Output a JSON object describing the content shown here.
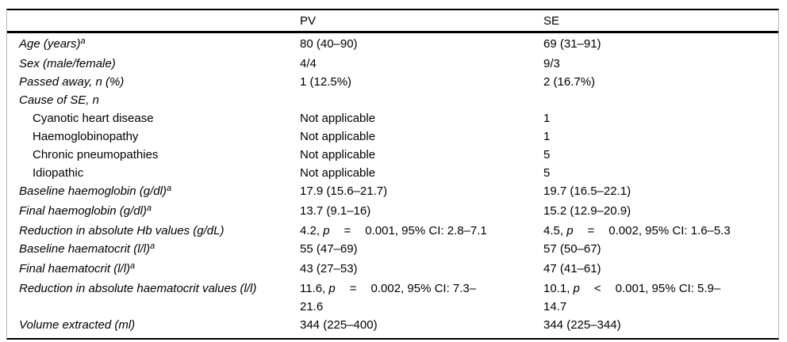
{
  "table": {
    "header": {
      "label": "",
      "pv": "PV",
      "se": "SE"
    },
    "rows": [
      {
        "label": "Age (years)",
        "sup": "a",
        "italic": true,
        "indent": false,
        "pv": "80 (40–90)",
        "se": "69 (31–91)"
      },
      {
        "label": "Sex (male/female)",
        "italic": true,
        "indent": false,
        "pv": "4/4",
        "se": "9/3"
      },
      {
        "label": "Passed away, n (%)",
        "italic": true,
        "indent": false,
        "pv": "1 (12.5%)",
        "se": "2 (16.7%)"
      },
      {
        "label": "Cause of SE, n",
        "italic": true,
        "indent": false,
        "pv": "",
        "se": ""
      },
      {
        "label": "Cyanotic heart disease",
        "italic": false,
        "indent": true,
        "pv": "Not applicable",
        "se": "1"
      },
      {
        "label": "Haemoglobinopathy",
        "italic": false,
        "indent": true,
        "pv": "Not applicable",
        "se": "1"
      },
      {
        "label": "Chronic pneumopathies",
        "italic": false,
        "indent": true,
        "pv": "Not applicable",
        "se": "5"
      },
      {
        "label": "Idiopathic",
        "italic": false,
        "indent": true,
        "pv": "Not applicable",
        "se": "5"
      },
      {
        "label": "Baseline haemoglobin (g/dl)",
        "sup": "a",
        "italic": true,
        "indent": false,
        "pv": "17.9 (15.6–21.7)",
        "se": "19.7 (16.5–22.1)"
      },
      {
        "label": "Final haemoglobin (g/dl)",
        "sup": "a",
        "italic": true,
        "indent": false,
        "pv": "13.7 (9.1–16)",
        "se": "15.2 (12.9–20.9)"
      },
      {
        "label": "Reduction in absolute Hb values (g/dL)",
        "italic": true,
        "indent": false,
        "pv": {
          "pre": "4.2, ",
          "p": "p",
          "op": "=",
          "post": "0.001, 95% CI: 2.8–7.1"
        },
        "se": {
          "pre": "4.5, ",
          "p": "p",
          "op": "=",
          "post": "0.002, 95% CI: 1.6–5.3"
        }
      },
      {
        "label": "Baseline haematocrit (l/l)",
        "sup": "a",
        "italic": true,
        "indent": false,
        "pv": "55 (47–69)",
        "se": "57 (50–67)"
      },
      {
        "label": "Final haematocrit (l/l)",
        "sup": "a",
        "italic": true,
        "indent": false,
        "pv": "43 (27–53)",
        "se": "47 (41–61)"
      },
      {
        "label": "Reduction in absolute haematocrit values (l/l)",
        "italic": true,
        "indent": false,
        "pv": {
          "pre": "11.6, ",
          "p": "p",
          "op": "=",
          "post": "0.002, 95% CI: 7.3–21.6"
        },
        "se": {
          "pre": "10.1, ",
          "p": "p",
          "op": "<",
          "post": "0.001, 95% CI: 5.9–14.7"
        }
      },
      {
        "label": "Volume extracted (ml)",
        "italic": true,
        "indent": false,
        "pv": "344 (225–400)",
        "se": "344 (225–344)"
      }
    ]
  }
}
